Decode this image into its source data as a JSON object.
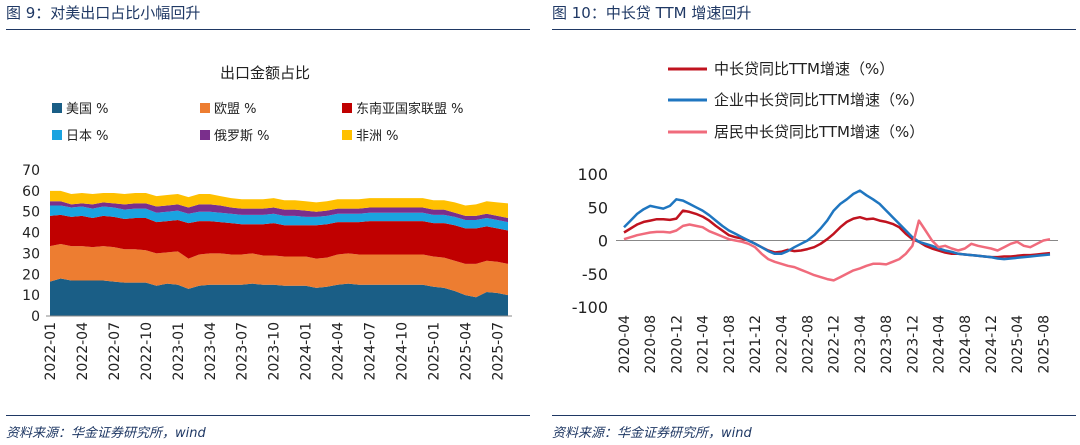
{
  "left_panel": {
    "header": "图 9：对美出口占比小幅回升",
    "source": "资料来源：华金证券研究所，wind"
  },
  "right_panel": {
    "header": "图 10：中长贷 TTM 增速回升",
    "source": "资料来源：华金证券研究所，wind"
  },
  "colors": {
    "header_text": "#1f3864",
    "us": "#1a5e86",
    "eu": "#ed7d31",
    "asean": "#c00000",
    "japan": "#1aa3e0",
    "russia": "#7a2f8c",
    "africa": "#ffc000",
    "total_loan": "#c0131f",
    "corp_loan": "#1f76c0",
    "hh_loan": "#f06b7c"
  },
  "chart_data": [
    {
      "type": "area",
      "stacked": true,
      "title": "出口金额占比",
      "xlabel": "",
      "ylabel": "",
      "ylim": [
        0,
        70
      ],
      "yticks": [
        0,
        10,
        20,
        30,
        40,
        50,
        60,
        70
      ],
      "xtick_labels": [
        "2022-01",
        "2022-04",
        "2022-07",
        "2022-10",
        "2023-01",
        "2023-04",
        "2023-07",
        "2023-10",
        "2024-01",
        "2024-04",
        "2024-07",
        "2024-10",
        "2025-01",
        "2025-04",
        "2025-07"
      ],
      "legend_position": "top",
      "x": [
        "2022-01",
        "2022-02",
        "2022-03",
        "2022-04",
        "2022-05",
        "2022-06",
        "2022-07",
        "2022-08",
        "2022-09",
        "2022-10",
        "2022-11",
        "2022-12",
        "2023-01",
        "2023-02",
        "2023-03",
        "2023-04",
        "2023-05",
        "2023-06",
        "2023-07",
        "2023-08",
        "2023-09",
        "2023-10",
        "2023-11",
        "2023-12",
        "2024-01",
        "2024-02",
        "2024-03",
        "2024-04",
        "2024-05",
        "2024-06",
        "2024-07",
        "2024-08",
        "2024-09",
        "2024-10",
        "2024-11",
        "2024-12",
        "2025-01",
        "2025-02",
        "2025-03",
        "2025-04",
        "2025-05",
        "2025-06",
        "2025-07",
        "2025-08"
      ],
      "series": [
        {
          "name": "美国 %",
          "color_key": "us",
          "values": [
            16.5,
            18,
            17,
            17,
            17,
            17,
            16.5,
            16,
            16,
            16,
            14.5,
            15.5,
            15,
            13,
            14.5,
            15,
            15,
            15,
            15,
            15.5,
            15,
            15,
            14.5,
            14.5,
            14.5,
            13.5,
            14,
            15,
            15.5,
            15,
            15,
            15,
            15,
            15,
            15,
            15,
            14,
            13.5,
            12,
            10,
            9,
            11.5,
            11,
            10
          ]
        },
        {
          "name": "欧盟 %",
          "color_key": "eu",
          "values": [
            17,
            16.5,
            16.5,
            16.5,
            16,
            16.5,
            16.5,
            16,
            16,
            15.5,
            15.5,
            15,
            16,
            14.5,
            15,
            15,
            15,
            14.5,
            14.5,
            14.5,
            14,
            14,
            14,
            14,
            14,
            14,
            14,
            14.5,
            14.5,
            14.5,
            14.5,
            14.5,
            14.5,
            14.5,
            14.5,
            14.5,
            14.5,
            14.5,
            14.5,
            15,
            16,
            15,
            15,
            15
          ]
        },
        {
          "name": "东南亚国家联盟 %",
          "color_key": "asean",
          "values": [
            14.5,
            14,
            14,
            14.5,
            14,
            14.5,
            14.5,
            14.5,
            15,
            15.5,
            15,
            15,
            15,
            17,
            16,
            15.5,
            15,
            15,
            14.5,
            14,
            15,
            15.5,
            15,
            15,
            15,
            16,
            16,
            15.5,
            15,
            15.5,
            16,
            16,
            16,
            16,
            16,
            16,
            16,
            16.5,
            17,
            17,
            17,
            16.5,
            16,
            16
          ]
        },
        {
          "name": "日本 %",
          "color_key": "japan",
          "values": [
            5,
            4.5,
            4.5,
            4.5,
            4.5,
            4.5,
            4.5,
            4.5,
            4.5,
            4.5,
            4.5,
            4.5,
            4.5,
            4.5,
            4.5,
            4.5,
            4.5,
            4.5,
            4.5,
            4.5,
            4.5,
            4.5,
            4.5,
            4.5,
            4,
            4,
            4,
            4,
            4,
            4,
            4,
            4,
            4,
            4,
            4,
            4,
            4,
            4,
            4,
            4,
            4,
            4,
            4,
            4
          ]
        },
        {
          "name": "俄罗斯 %",
          "color_key": "russia",
          "values": [
            2,
            2,
            1.5,
            1.5,
            2,
            2,
            2,
            2.5,
            2.5,
            2.5,
            3,
            3,
            3,
            3,
            3.5,
            3.5,
            3.5,
            3,
            3,
            3,
            3,
            3,
            3,
            3,
            3,
            2.5,
            2.5,
            2.5,
            2.5,
            2.5,
            2.5,
            2.5,
            2.5,
            2.5,
            2.5,
            2.5,
            2.5,
            2.5,
            2,
            2,
            2,
            2,
            2,
            2
          ]
        },
        {
          "name": "非洲 %",
          "color_key": "africa",
          "values": [
            5,
            5,
            5,
            5,
            5,
            4.5,
            5,
            5,
            5,
            5,
            5,
            5,
            5,
            5,
            5,
            5,
            4.5,
            4.5,
            4.5,
            4.5,
            4.5,
            4.5,
            4.5,
            4.5,
            4.5,
            4.5,
            4.5,
            4.5,
            4.5,
            4.5,
            4.5,
            4.5,
            4.5,
            4.5,
            4.5,
            4.5,
            4.5,
            4.5,
            5,
            5,
            5.5,
            6,
            6.5,
            7
          ]
        }
      ]
    },
    {
      "type": "line",
      "title": "",
      "xlabel": "",
      "ylabel": "",
      "ylim": [
        -100,
        100
      ],
      "yticks": [
        -100,
        -50,
        0,
        50,
        100
      ],
      "xtick_labels": [
        "2020-04",
        "2020-08",
        "2020-12",
        "2021-04",
        "2021-08",
        "2021-12",
        "2022-04",
        "2022-08",
        "2022-12",
        "2023-04",
        "2023-08",
        "2023-12",
        "2024-04",
        "2024-08",
        "2024-12",
        "2025-04",
        "2025-08"
      ],
      "legend_position": "top",
      "x": [
        "2020-04",
        "2020-05",
        "2020-06",
        "2020-07",
        "2020-08",
        "2020-09",
        "2020-10",
        "2020-11",
        "2020-12",
        "2021-01",
        "2021-02",
        "2021-03",
        "2021-04",
        "2021-05",
        "2021-06",
        "2021-07",
        "2021-08",
        "2021-09",
        "2021-10",
        "2021-11",
        "2021-12",
        "2022-01",
        "2022-02",
        "2022-03",
        "2022-04",
        "2022-05",
        "2022-06",
        "2022-07",
        "2022-08",
        "2022-09",
        "2022-10",
        "2022-11",
        "2022-12",
        "2023-01",
        "2023-02",
        "2023-03",
        "2023-04",
        "2023-05",
        "2023-06",
        "2023-07",
        "2023-08",
        "2023-09",
        "2023-10",
        "2023-11",
        "2023-12",
        "2024-01",
        "2024-02",
        "2024-03",
        "2024-04",
        "2024-05",
        "2024-06",
        "2024-07",
        "2024-08",
        "2024-09",
        "2024-10",
        "2024-11",
        "2024-12",
        "2025-01",
        "2025-02",
        "2025-03",
        "2025-04",
        "2025-05",
        "2025-06",
        "2025-07",
        "2025-08",
        "2025-09"
      ],
      "series": [
        {
          "name": "中长贷同比TTM增速（%）",
          "color_key": "total_loan",
          "values": [
            12,
            18,
            24,
            28,
            30,
            32,
            32,
            31,
            33,
            45,
            43,
            40,
            36,
            30,
            22,
            15,
            8,
            5,
            3,
            0,
            -5,
            -10,
            -15,
            -18,
            -17,
            -14,
            -16,
            -15,
            -13,
            -10,
            -5,
            2,
            10,
            20,
            28,
            33,
            35,
            32,
            33,
            30,
            28,
            25,
            20,
            10,
            2,
            -2,
            -8,
            -12,
            -15,
            -18,
            -20,
            -20,
            -21,
            -22,
            -23,
            -24,
            -25,
            -25,
            -24,
            -24,
            -23,
            -22,
            -22,
            -21,
            -20,
            -19
          ]
        },
        {
          "name": "企业中长贷同比TTM增速（%）",
          "color_key": "corp_loan",
          "values": [
            20,
            30,
            40,
            47,
            52,
            50,
            48,
            52,
            62,
            60,
            55,
            50,
            45,
            38,
            30,
            22,
            15,
            10,
            5,
            0,
            -5,
            -10,
            -16,
            -20,
            -20,
            -16,
            -10,
            -5,
            0,
            8,
            18,
            30,
            45,
            55,
            62,
            70,
            75,
            68,
            62,
            55,
            45,
            35,
            25,
            15,
            5,
            -2,
            -5,
            -8,
            -12,
            -15,
            -17,
            -20,
            -21,
            -22,
            -23,
            -24,
            -25,
            -27,
            -28,
            -27,
            -26,
            -25,
            -24,
            -23,
            -22,
            -21
          ]
        },
        {
          "name": "居民中长贷同比TTM增速（%）",
          "color_key": "hh_loan",
          "values": [
            2,
            5,
            8,
            10,
            12,
            13,
            13,
            12,
            15,
            22,
            24,
            22,
            20,
            14,
            10,
            6,
            2,
            0,
            -2,
            -5,
            -10,
            -20,
            -28,
            -32,
            -35,
            -38,
            -40,
            -44,
            -48,
            -52,
            -55,
            -58,
            -60,
            -55,
            -50,
            -45,
            -42,
            -38,
            -35,
            -35,
            -36,
            -32,
            -28,
            -20,
            -8,
            30,
            15,
            0,
            -10,
            -8,
            -12,
            -15,
            -12,
            -5,
            -8,
            -10,
            -12,
            -15,
            -10,
            -5,
            -2,
            -8,
            -10,
            -5,
            0,
            2
          ]
        }
      ]
    }
  ]
}
